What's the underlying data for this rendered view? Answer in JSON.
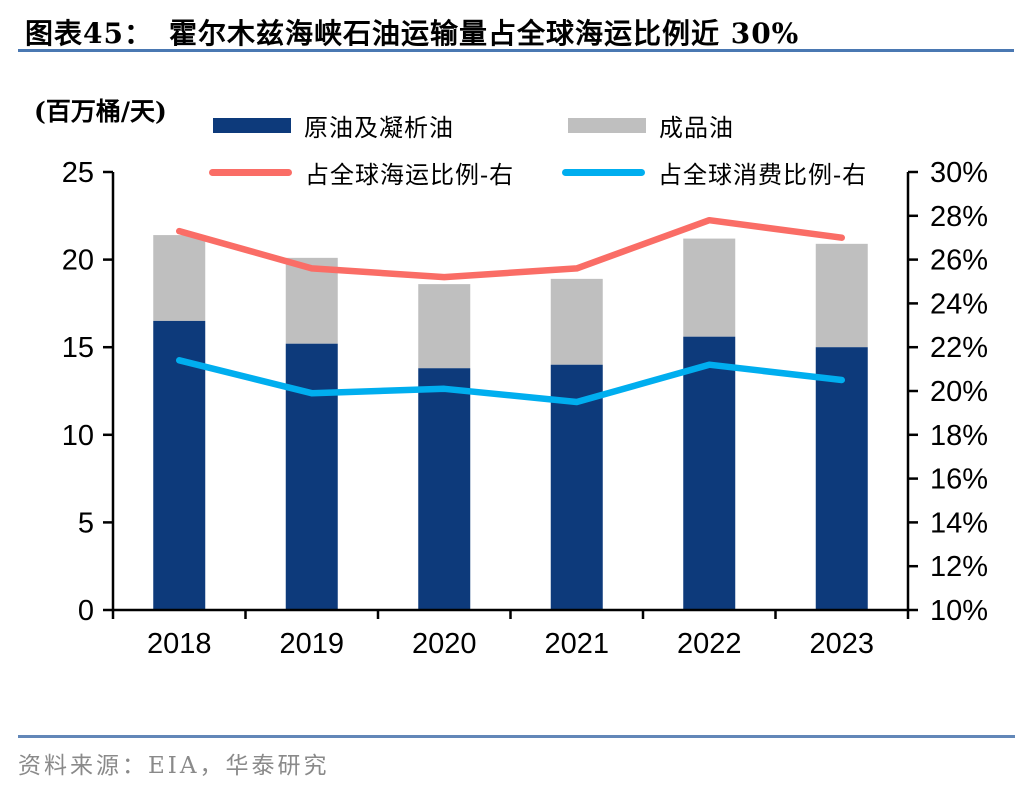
{
  "header": {
    "label": "图表45：",
    "title": "霍尔木兹海峡石油运输量占全球海运比例近 30%"
  },
  "legend": {
    "crude": "原油及凝析油",
    "products": "成品油",
    "shipping": "占全球海运比例-右",
    "consumption": "占全球消费比例-右"
  },
  "footer": {
    "source": "资料来源：EIA，华泰研究"
  },
  "colors": {
    "title_divider": "#4a78b2",
    "footer_divider": "#6287b8",
    "source_text": "#8a8a8a",
    "axis": "#000000"
  },
  "chart_data": {
    "type": "bar",
    "subtype": "stacked-bars-with-lines",
    "title": "霍尔木兹海峡石油运输量占全球海运比例近 30%",
    "unit_label": "(百万桶/天)",
    "categories": [
      "2018",
      "2019",
      "2020",
      "2021",
      "2022",
      "2023"
    ],
    "bar_series": [
      {
        "name": "原油及凝析油",
        "axis": "left",
        "color": "#0d3a7b",
        "values": [
          16.5,
          15.2,
          13.8,
          14.0,
          15.6,
          15.0
        ]
      },
      {
        "name": "成品油",
        "axis": "left",
        "color": "#bfbfbf",
        "values": [
          4.9,
          4.9,
          4.8,
          4.9,
          5.6,
          5.9
        ]
      }
    ],
    "line_series": [
      {
        "name": "占全球海运比例-右",
        "axis": "right",
        "color": "#fa6d66",
        "values": [
          27.3,
          25.6,
          25.2,
          25.6,
          27.8,
          27.0
        ]
      },
      {
        "name": "占全球消费比例-右",
        "axis": "right",
        "color": "#00aeef",
        "values": [
          21.4,
          19.9,
          20.1,
          19.5,
          21.2,
          20.5
        ]
      }
    ],
    "stacked": true,
    "grid": false,
    "legend_position": "top",
    "left_axis": {
      "min": 0,
      "max": 25,
      "step": 5,
      "tick_labels": [
        "0",
        "5",
        "10",
        "15",
        "20",
        "25"
      ]
    },
    "right_axis": {
      "min": 10,
      "max": 30,
      "step": 2,
      "tick_labels": [
        "10%",
        "12%",
        "14%",
        "16%",
        "18%",
        "20%",
        "22%",
        "24%",
        "26%",
        "28%",
        "30%"
      ]
    }
  }
}
